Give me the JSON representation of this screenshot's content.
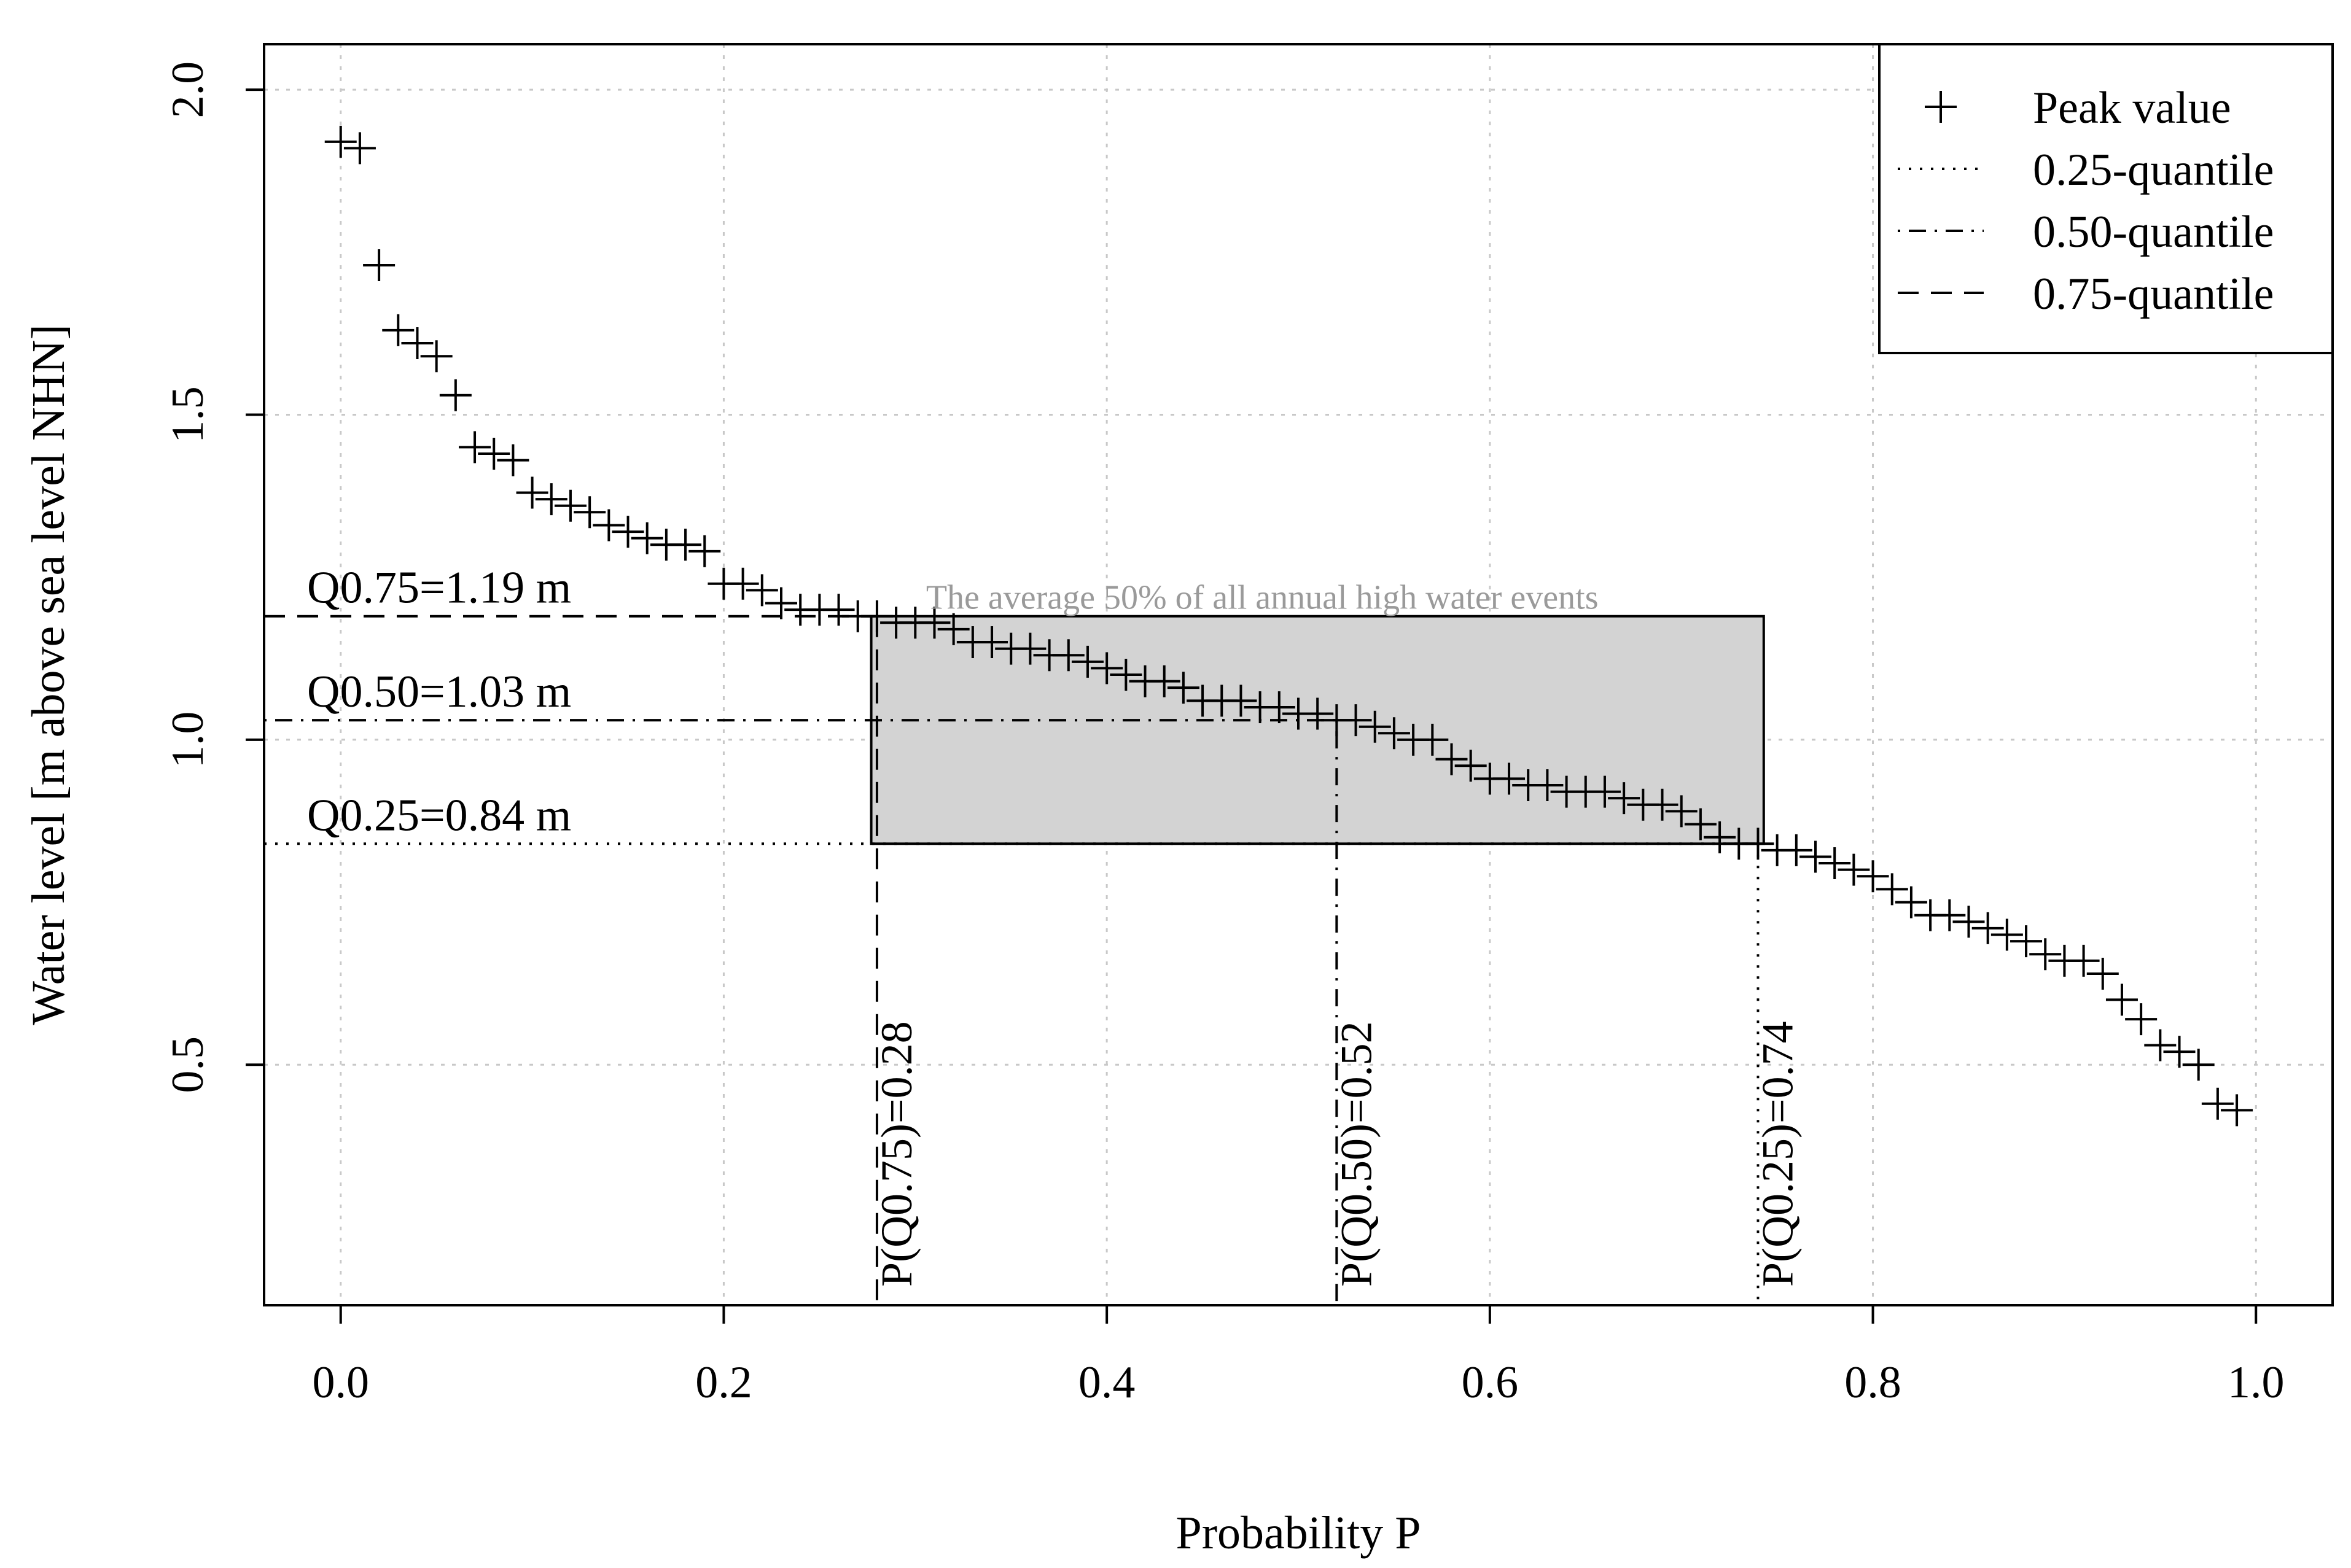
{
  "chart_data": {
    "type": "scatter",
    "xlabel": "Probability P",
    "ylabel": "Water level [m above sea level NHN]",
    "xlim": [
      -0.04,
      1.04
    ],
    "ylim": [
      0.13,
      2.07
    ],
    "x_ticks": [
      {
        "value": 0.0,
        "label": "0.0"
      },
      {
        "value": 0.2,
        "label": "0.2"
      },
      {
        "value": 0.4,
        "label": "0.4"
      },
      {
        "value": 0.6,
        "label": "0.6"
      },
      {
        "value": 0.8,
        "label": "0.8"
      },
      {
        "value": 1.0,
        "label": "1.0"
      }
    ],
    "y_ticks": [
      {
        "value": 0.5,
        "label": "0.5"
      },
      {
        "value": 1.0,
        "label": "1.0"
      },
      {
        "value": 1.5,
        "label": "1.5"
      },
      {
        "value": 2.0,
        "label": "2.0"
      }
    ],
    "grid": true,
    "series": [
      {
        "name": "Peak value",
        "marker": "plus",
        "x": [
          0.0,
          0.01,
          0.02,
          0.03,
          0.04,
          0.05,
          0.06,
          0.07,
          0.08,
          0.09,
          0.1,
          0.11,
          0.12,
          0.13,
          0.14,
          0.15,
          0.16,
          0.17,
          0.18,
          0.19,
          0.2,
          0.21,
          0.22,
          0.23,
          0.24,
          0.25,
          0.26,
          0.27,
          0.28,
          0.29,
          0.3,
          0.31,
          0.32,
          0.33,
          0.34,
          0.35,
          0.36,
          0.37,
          0.38,
          0.39,
          0.4,
          0.41,
          0.42,
          0.43,
          0.44,
          0.45,
          0.46,
          0.47,
          0.48,
          0.49,
          0.5,
          0.51,
          0.52,
          0.53,
          0.54,
          0.55,
          0.56,
          0.57,
          0.58,
          0.59,
          0.6,
          0.61,
          0.62,
          0.63,
          0.64,
          0.65,
          0.66,
          0.67,
          0.68,
          0.69,
          0.7,
          0.71,
          0.72,
          0.73,
          0.74,
          0.75,
          0.76,
          0.77,
          0.78,
          0.79,
          0.8,
          0.81,
          0.82,
          0.83,
          0.84,
          0.85,
          0.86,
          0.87,
          0.88,
          0.89,
          0.9,
          0.91,
          0.92,
          0.93,
          0.94,
          0.95,
          0.96,
          0.97,
          0.98,
          0.99
        ],
        "y": [
          1.92,
          1.91,
          1.73,
          1.63,
          1.61,
          1.59,
          1.53,
          1.45,
          1.44,
          1.43,
          1.38,
          1.37,
          1.36,
          1.35,
          1.33,
          1.32,
          1.31,
          1.3,
          1.3,
          1.29,
          1.24,
          1.24,
          1.23,
          1.21,
          1.2,
          1.2,
          1.2,
          1.19,
          1.19,
          1.18,
          1.18,
          1.18,
          1.17,
          1.15,
          1.15,
          1.14,
          1.14,
          1.13,
          1.13,
          1.12,
          1.11,
          1.1,
          1.09,
          1.09,
          1.08,
          1.06,
          1.06,
          1.06,
          1.05,
          1.05,
          1.04,
          1.04,
          1.03,
          1.03,
          1.02,
          1.01,
          1.0,
          1.0,
          0.97,
          0.96,
          0.94,
          0.94,
          0.93,
          0.93,
          0.92,
          0.92,
          0.92,
          0.91,
          0.9,
          0.9,
          0.89,
          0.87,
          0.85,
          0.84,
          0.84,
          0.83,
          0.83,
          0.82,
          0.81,
          0.8,
          0.79,
          0.77,
          0.75,
          0.73,
          0.73,
          0.72,
          0.71,
          0.7,
          0.69,
          0.67,
          0.66,
          0.66,
          0.64,
          0.6,
          0.57,
          0.53,
          0.52,
          0.5,
          0.44,
          0.43
        ]
      }
    ],
    "quantiles": [
      {
        "name": "0.25-quantile",
        "dash": "dotted",
        "level": 0.84,
        "probability": 0.74,
        "level_label": "Q0.25=0.84 m",
        "prob_label": "P(Q0.25)=0.74"
      },
      {
        "name": "0.50-quantile",
        "dash": "dotdash",
        "level": 1.03,
        "probability": 0.52,
        "level_label": "Q0.50=1.03 m",
        "prob_label": "P(Q0.50)=0.52"
      },
      {
        "name": "0.75-quantile",
        "dash": "dashed",
        "level": 1.19,
        "probability": 0.28,
        "level_label": "Q0.75=1.19 m",
        "prob_label": "P(Q0.75)=0.28"
      }
    ],
    "shaded_region": {
      "x": [
        0.277,
        0.743
      ],
      "y": [
        0.84,
        1.19
      ],
      "label": "The average 50% of all annual high water events",
      "color": "#d3d3d3"
    },
    "legend": {
      "position": "top-right",
      "entries": [
        {
          "label": "Peak value",
          "symbol": "plus"
        },
        {
          "label": "0.25-quantile",
          "symbol": "dotted"
        },
        {
          "label": "0.50-quantile",
          "symbol": "dotdash"
        },
        {
          "label": "0.75-quantile",
          "symbol": "dashed"
        }
      ]
    },
    "colors": {
      "points": "#000000",
      "grid": "#c8c8c8",
      "shade": "#d3d3d3",
      "caption": "#9a9a9a"
    }
  }
}
